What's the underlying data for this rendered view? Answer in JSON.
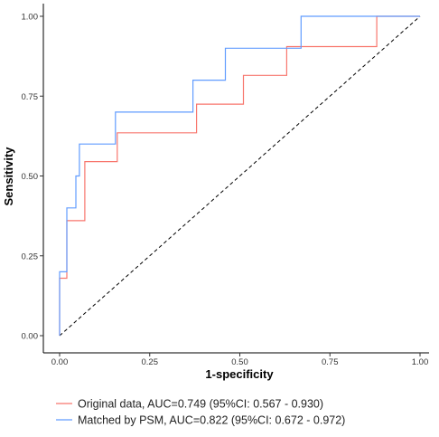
{
  "chart_data": {
    "type": "line",
    "title": "",
    "xlabel": "1-specificity",
    "ylabel": "Sensitivity",
    "xlim": [
      0,
      1
    ],
    "ylim": [
      0,
      1
    ],
    "x_ticks": [
      0,
      0.25,
      0.5,
      0.75,
      1
    ],
    "x_tick_labels": [
      "0.00",
      "0.25",
      "0.50",
      "0.75",
      "1.00"
    ],
    "y_ticks": [
      0,
      0.25,
      0.5,
      0.75,
      1
    ],
    "y_tick_labels": [
      "0.00",
      "0.25",
      "0.50",
      "0.75",
      "1.00"
    ],
    "grid": false,
    "legend_position": "bottom",
    "reference_line": {
      "style": "dashed",
      "color": "#000000",
      "points": [
        [
          0,
          0
        ],
        [
          1,
          1
        ]
      ]
    },
    "series": [
      {
        "name": "Original data, AUC=0.749 (95%CI: 0.567 - 0.930)",
        "color": "#f8766d",
        "x": [
          0,
          0,
          0.02,
          0.02,
          0.07,
          0.07,
          0.16,
          0.16,
          0.38,
          0.38,
          0.51,
          0.51,
          0.63,
          0.63,
          0.88,
          0.88,
          1
        ],
        "y": [
          0,
          0.18,
          0.18,
          0.36,
          0.36,
          0.545,
          0.545,
          0.635,
          0.635,
          0.725,
          0.725,
          0.815,
          0.815,
          0.905,
          0.905,
          1,
          1
        ]
      },
      {
        "name": "Matched by PSM, AUC=0.822 (95%CI: 0.672 - 0.972)",
        "color": "#619cff",
        "x": [
          0,
          0,
          0.02,
          0.02,
          0.045,
          0.045,
          0.055,
          0.055,
          0.155,
          0.155,
          0.37,
          0.37,
          0.46,
          0.46,
          0.67,
          0.67,
          1
        ],
        "y": [
          0,
          0.2,
          0.2,
          0.4,
          0.4,
          0.5,
          0.5,
          0.6,
          0.6,
          0.7,
          0.7,
          0.8,
          0.8,
          0.9,
          0.9,
          1,
          1
        ]
      }
    ]
  }
}
